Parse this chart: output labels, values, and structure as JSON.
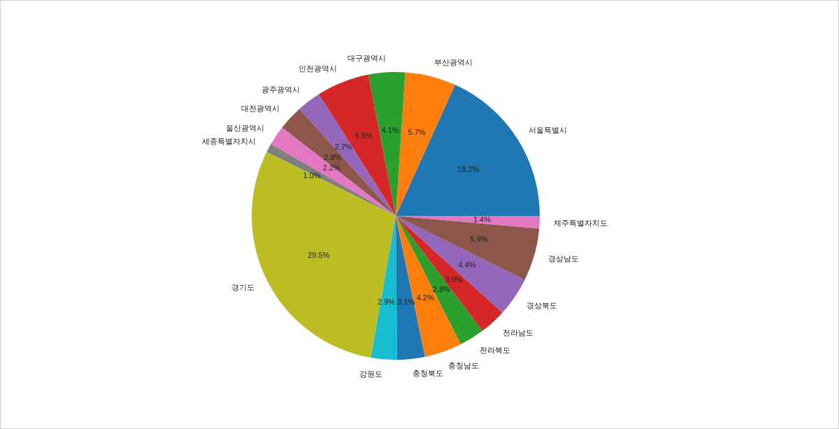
{
  "chart_data": {
    "type": "pie",
    "categories": [
      "서울특별시",
      "부산광역시",
      "대구광역시",
      "인천광역시",
      "광주광역시",
      "대전광역시",
      "울산광역시",
      "세종특별자치시",
      "경기도",
      "강원도",
      "충청북도",
      "충청남도",
      "전라북도",
      "전라남도",
      "경상북도",
      "경상남도",
      "제주특별자치도"
    ],
    "values": [
      18.2,
      5.7,
      4.1,
      5.9,
      2.7,
      2.8,
      2.2,
      1.0,
      29.5,
      2.9,
      3.1,
      4.2,
      2.8,
      3.0,
      4.4,
      5.9,
      1.4
    ],
    "value_labels": [
      "18.2%",
      "5.7%",
      "4.1%",
      "5.9%",
      "2.7%",
      "2.8%",
      "2.2%",
      "1.0%",
      "29.5%",
      "2.9%",
      "3.1%",
      "4.2%",
      "2.8%",
      "3.0%",
      "4.4%",
      "5.9%",
      "1.4%"
    ],
    "colors": [
      "#1f77b4",
      "#ff7f0e",
      "#2ca02c",
      "#d62728",
      "#9467bd",
      "#8c564b",
      "#e377c2",
      "#7f7f7f",
      "#bcbd22",
      "#17becf",
      "#1f77b4",
      "#ff7f0e",
      "#2ca02c",
      "#d62728",
      "#9467bd",
      "#8c564b",
      "#e377c2"
    ]
  }
}
